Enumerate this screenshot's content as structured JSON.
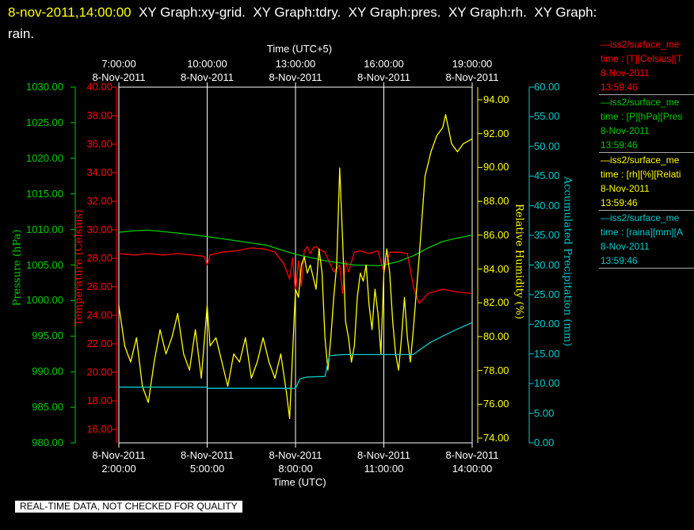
{
  "header": {
    "timestamp": "8-nov-2011,14:00:00",
    "title_line1": "  XY Graph:xy-grid.  XY Graph:tdry.  XY Graph:pres.  XY Graph:rh.  XY Graph:",
    "title_line2": "rain."
  },
  "axes": {
    "top_title": "Time (UTC+5)",
    "bottom_title": "Time (UTC)",
    "top_ticks": [
      {
        "time": "7:00:00",
        "date": "8-Nov-2011"
      },
      {
        "time": "10:00:00",
        "date": "8-Nov-2011"
      },
      {
        "time": "13:00:00",
        "date": "8-Nov-2011"
      },
      {
        "time": "16:00:00",
        "date": "8-Nov-2011"
      },
      {
        "time": "19:00:00",
        "date": "8-Nov-2011"
      }
    ],
    "bottom_ticks": [
      {
        "date": "8-Nov-2011",
        "time": "2:00:00"
      },
      {
        "date": "8-Nov-2011",
        "time": "5:00:00"
      },
      {
        "date": "8-Nov-2011",
        "time": "8:00:00"
      },
      {
        "date": "8-Nov-2011",
        "time": "11:00:00"
      },
      {
        "date": "8-Nov-2011",
        "time": "14:00:00"
      }
    ],
    "pressure": {
      "label": "Pressure (hPa)",
      "color": "#00cc00",
      "ticks": [
        "1030.00",
        "1025.00",
        "1020.00",
        "1015.00",
        "1010.00",
        "1005.00",
        "1000.00",
        "995.00",
        "990.00",
        "985.00",
        "980.00"
      ]
    },
    "temperature": {
      "label": "Temperature (Celsius)",
      "color": "#ff0000",
      "ticks": [
        "40.00",
        "38.00",
        "36.00",
        "34.00",
        "32.00",
        "30.00",
        "28.00",
        "26.00",
        "24.00",
        "22.00",
        "20.00",
        "18.00",
        "16.00"
      ]
    },
    "humidity": {
      "label": "Relative Humidity (%)",
      "color": "#ffff00",
      "ticks": [
        "94.00",
        "92.00",
        "90.00",
        "88.00",
        "86.00",
        "84.00",
        "82.00",
        "80.00",
        "78.00",
        "76.00",
        "74.00"
      ]
    },
    "rain": {
      "label": "Accumulated Precipitation (mm)",
      "color": "#00cccc",
      "ticks": [
        "60.00",
        "55.00",
        "50.00",
        "45.00",
        "40.00",
        "35.00",
        "30.00",
        "25.00",
        "20.00",
        "15.00",
        "10.00",
        "5.00",
        "0.00"
      ]
    }
  },
  "legend": [
    {
      "color": "#ff0000",
      "line1": "—iss2/surface_me",
      "line2": "time : [T][Celsius][T",
      "line3": "8-Nov-2011",
      "line4": "13:59:46"
    },
    {
      "color": "#00cc00",
      "line1": "—iss2/surface_me",
      "line2": "time : [P][hPa][Pres",
      "line3": "8-Nov-2011",
      "line4": "13:59:46"
    },
    {
      "color": "#ffff00",
      "line1": "—iss2/surface_me",
      "line2": "time : [rh][%][Relati",
      "line3": "8-Nov-2011",
      "line4": "13:59:46"
    },
    {
      "color": "#00cccc",
      "line1": "—iss2/surface_me",
      "line2": "time : [raina][mm][A",
      "line3": "8-Nov-2011",
      "line4": "13:59:46"
    }
  ],
  "footer_note": "REAL-TIME DATA, NOT CHECKED FOR QUALITY",
  "chart_data": {
    "type": "line",
    "x_unit": "hours UTC, 8-Nov-2011",
    "xlim": [
      2,
      14
    ],
    "grid": true,
    "series": [
      {
        "name": "Temperature",
        "axis": "temperature",
        "ylim": [
          15,
          40
        ],
        "x": [
          2.0,
          2.5,
          3.0,
          3.5,
          4.0,
          4.5,
          4.9,
          5.0,
          5.1,
          5.5,
          6.0,
          6.5,
          7.0,
          7.3,
          7.6,
          7.8,
          7.9,
          8.0,
          8.1,
          8.2,
          8.3,
          8.4,
          8.5,
          8.6,
          8.7,
          8.8,
          9.0,
          9.3,
          9.5,
          9.6,
          9.7,
          9.8,
          10.0,
          10.2,
          10.5,
          10.8,
          11.0,
          11.2,
          11.5,
          11.8,
          12.0,
          12.2,
          12.5,
          13.0,
          13.5,
          14.0
        ],
        "values": [
          28.3,
          28.2,
          28.3,
          28.2,
          28.3,
          28.2,
          28.1,
          27.5,
          28.2,
          28.4,
          28.5,
          28.7,
          28.6,
          28.4,
          27.6,
          26.5,
          28.0,
          25.5,
          27.8,
          26.0,
          28.5,
          28.8,
          28.3,
          28.7,
          28.8,
          28.6,
          28.4,
          27.0,
          27.5,
          25.5,
          27.8,
          27.0,
          28.4,
          28.5,
          28.3,
          28.5,
          27.0,
          28.4,
          28.4,
          28.3,
          26.0,
          24.8,
          25.5,
          25.8,
          25.6,
          25.5
        ]
      },
      {
        "name": "Pressure",
        "axis": "pressure",
        "ylim": [
          980,
          1030
        ],
        "x": [
          2.0,
          2.5,
          3.0,
          4.0,
          5.0,
          6.0,
          7.0,
          8.0,
          9.0,
          10.0,
          10.8,
          11.0,
          11.5,
          12.0,
          12.5,
          13.0,
          13.5,
          14.0
        ],
        "values": [
          1009.6,
          1009.8,
          1009.9,
          1009.5,
          1009.0,
          1008.4,
          1007.8,
          1006.5,
          1005.6,
          1005.0,
          1004.9,
          1005.0,
          1005.5,
          1006.3,
          1007.4,
          1008.3,
          1008.8,
          1009.2
        ]
      },
      {
        "name": "Relative Humidity",
        "axis": "humidity",
        "ylim": [
          73.5,
          95.5
        ],
        "x": [
          2.0,
          2.2,
          2.4,
          2.6,
          2.8,
          3.0,
          3.2,
          3.4,
          3.6,
          3.8,
          4.0,
          4.2,
          4.4,
          4.6,
          4.8,
          5.0,
          5.1,
          5.3,
          5.5,
          5.7,
          5.9,
          6.1,
          6.3,
          6.5,
          6.7,
          6.9,
          7.1,
          7.3,
          7.5,
          7.7,
          7.8,
          7.9,
          8.0,
          8.1,
          8.2,
          8.3,
          8.4,
          8.5,
          8.7,
          8.8,
          8.9,
          9.0,
          9.1,
          9.2,
          9.3,
          9.4,
          9.5,
          9.6,
          9.7,
          9.8,
          9.9,
          10.0,
          10.1,
          10.2,
          10.3,
          10.4,
          10.5,
          10.6,
          10.7,
          10.8,
          10.9,
          11.0,
          11.1,
          11.2,
          11.3,
          11.4,
          11.5,
          11.6,
          11.7,
          11.8,
          11.9,
          12.0,
          12.2,
          12.4,
          12.6,
          12.8,
          13.0,
          13.1,
          13.3,
          13.5,
          13.7,
          13.9,
          14.0
        ],
        "values": [
          82.0,
          79.5,
          78.5,
          80.0,
          77.0,
          76.0,
          78.5,
          80.5,
          79.0,
          80.0,
          81.5,
          79.0,
          78.0,
          80.5,
          77.5,
          82.0,
          79.5,
          80.0,
          78.5,
          77.0,
          79.0,
          78.5,
          80.0,
          77.5,
          78.5,
          80.0,
          78.5,
          77.5,
          79.0,
          76.5,
          75.0,
          79.0,
          83.0,
          82.5,
          84.5,
          85.0,
          84.0,
          84.5,
          83.0,
          85.5,
          84.0,
          80.0,
          78.0,
          80.0,
          82.5,
          84.5,
          90.5,
          86.0,
          81.0,
          80.0,
          78.5,
          79.5,
          82.5,
          84.0,
          83.5,
          84.5,
          82.0,
          80.5,
          83.0,
          81.5,
          79.0,
          84.0,
          85.5,
          84.0,
          81.0,
          79.0,
          78.0,
          80.0,
          82.5,
          80.0,
          78.5,
          80.5,
          85.0,
          90.0,
          91.5,
          92.5,
          93.0,
          93.8,
          92.0,
          91.5,
          92.0,
          92.2,
          92.3
        ]
      },
      {
        "name": "Accumulated Precipitation",
        "axis": "rain",
        "ylim": [
          0,
          60
        ],
        "x": [
          2.0,
          5.0,
          5.05,
          8.0,
          8.15,
          8.4,
          9.0,
          9.15,
          9.4,
          9.6,
          12.0,
          12.3,
          12.6,
          13.0,
          13.5,
          14.0
        ],
        "values": [
          9.4,
          9.4,
          9.2,
          9.2,
          10.8,
          11.1,
          11.2,
          14.7,
          14.8,
          14.9,
          14.9,
          16.0,
          17.0,
          18.0,
          19.2,
          20.3
        ]
      }
    ]
  }
}
